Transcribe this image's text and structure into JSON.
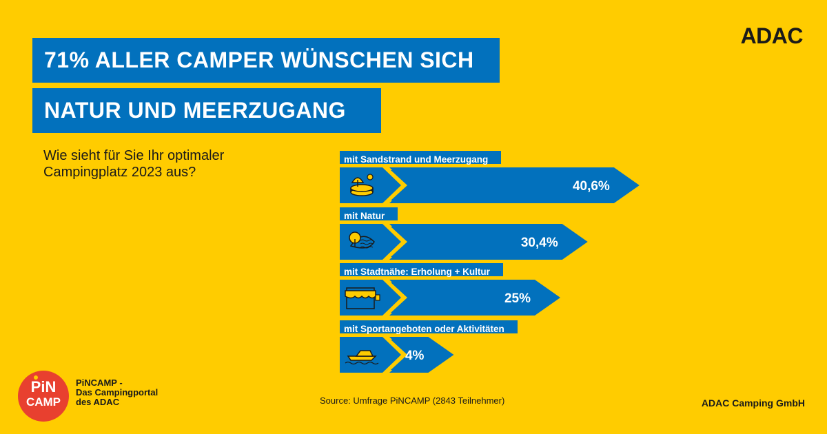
{
  "headline": {
    "line1": "71% ALLER CAMPER WÜNSCHEN SICH",
    "line2": "NATUR UND MEERZUGANG"
  },
  "brand": "ADAC",
  "question": {
    "line1": "Wie sieht für Sie Ihr optimaler",
    "line2": "Campingplatz 2023 aus?"
  },
  "chart_data": {
    "type": "bar",
    "orientation": "horizontal",
    "categories": [
      "mit Sandstrand und Meerzugang",
      "mit Natur",
      "mit Stadtnähe: Erholung + Kultur",
      "mit Sportangeboten oder Aktivitäten"
    ],
    "values": [
      40.6,
      30.4,
      25,
      4
    ],
    "value_labels": [
      "40,6%",
      "30,4%",
      "25%",
      "4%"
    ],
    "icons": [
      "beach-umbrella-icon",
      "nature-tree-lake-icon",
      "shop-awning-icon",
      "boat-icon"
    ],
    "colors": {
      "bar": "#0271BD",
      "background": "#FFCC00",
      "text": "#FFFFFF"
    }
  },
  "footer": {
    "logo_line1": "PiN",
    "logo_line2": "CAMP",
    "pin_lines": [
      "PiNCAMP -",
      "Das Campingportal",
      "des ADAC"
    ],
    "source": "Source: Umfrage PiNCAMP (2843 Teilnehmer)",
    "company": "ADAC Camping GmbH"
  }
}
